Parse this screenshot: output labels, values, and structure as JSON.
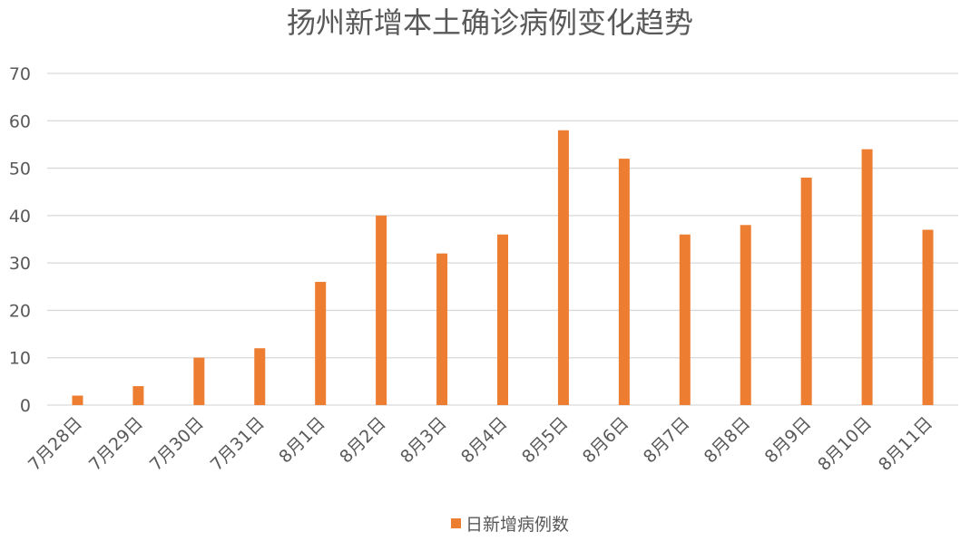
{
  "chart_data": {
    "type": "bar",
    "title": "扬州新增本土确诊病例变化趋势",
    "xlabel": "",
    "ylabel": "",
    "categories": [
      "7月28日",
      "7月29日",
      "7月30日",
      "7月31日",
      "8月1日",
      "8月2日",
      "8月3日",
      "8月4日",
      "8月5日",
      "8月6日",
      "8月7日",
      "8月8日",
      "8月9日",
      "8月10日",
      "8月11日"
    ],
    "series": [
      {
        "name": "日新增病例数",
        "values": [
          2,
          4,
          10,
          12,
          26,
          40,
          32,
          36,
          58,
          52,
          36,
          38,
          48,
          54,
          37
        ],
        "color": "#ed7d31"
      }
    ],
    "ylim": [
      0,
      70
    ],
    "yticks": [
      "0",
      "10",
      "20",
      "30",
      "40",
      "50",
      "60",
      "70"
    ],
    "grid": true,
    "legend": "bottom",
    "colors": {
      "bar": "#ed7d31",
      "grid": "#d9d9d9",
      "text": "#595959"
    }
  }
}
